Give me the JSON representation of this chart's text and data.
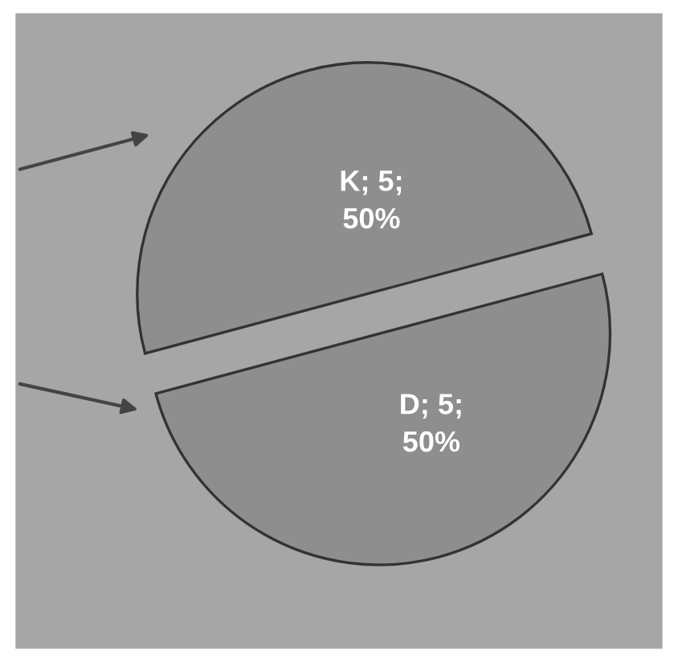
{
  "chart_data": {
    "type": "pie",
    "categories": [
      "K",
      "D"
    ],
    "values": [
      5,
      5
    ],
    "colors": [
      "#8e8e8e",
      "#8e8e8e"
    ],
    "value_labels": [
      "5;\n50%",
      "5;\n50%"
    ]
  }
}
